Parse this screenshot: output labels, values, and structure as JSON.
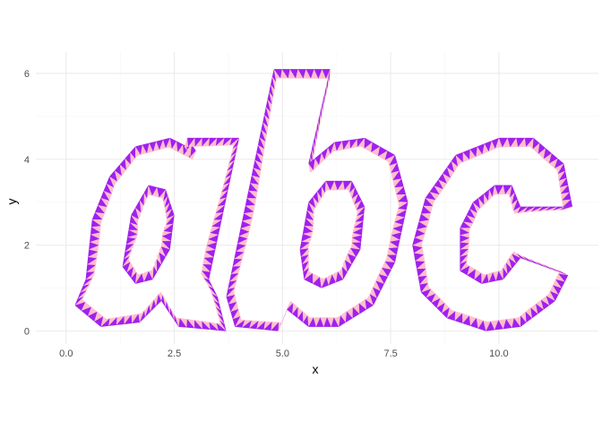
{
  "chart_data": {
    "type": "polygon-outline",
    "title": "",
    "xlabel": "x",
    "ylabel": "y",
    "xlim": [
      -0.7,
      12.3
    ],
    "ylim": [
      -0.3,
      6.5
    ],
    "x_ticks": [
      0,
      2.5,
      5,
      7.5,
      10
    ],
    "x_tick_labels": [
      "0.0",
      "2.5",
      "5.0",
      "7.5",
      "10.0"
    ],
    "y_ticks": [
      0,
      2,
      4,
      6
    ],
    "y_tick_labels": [
      "0",
      "2",
      "4",
      "6"
    ],
    "grid": true,
    "legend": "none",
    "colors": {
      "triangle_a": "#a020f0",
      "triangle_b": "#ffc0cb",
      "grid_major": "#ebebeb",
      "grid_minor": "#f5f5f5"
    },
    "glyphs": [
      {
        "name": "a-outer",
        "points": [
          [
            0.45,
            1.2
          ],
          [
            0.6,
            2.6
          ],
          [
            1.0,
            3.6
          ],
          [
            1.6,
            4.3
          ],
          [
            2.4,
            4.5
          ],
          [
            3.0,
            4.2
          ],
          [
            2.8,
            4.5
          ],
          [
            4.0,
            4.5
          ],
          [
            3.3,
            1.2
          ],
          [
            3.5,
            0.8
          ],
          [
            3.7,
            0
          ],
          [
            2.6,
            0.1
          ],
          [
            2.2,
            0.7
          ],
          [
            1.7,
            0.2
          ],
          [
            0.8,
            0.1
          ],
          [
            0.2,
            0.6
          ]
        ]
      },
      {
        "name": "a-inner",
        "points": [
          [
            1.3,
            1.5
          ],
          [
            1.5,
            2.7
          ],
          [
            1.9,
            3.4
          ],
          [
            2.3,
            3.3
          ],
          [
            2.5,
            2.7
          ],
          [
            2.4,
            1.9
          ],
          [
            2.0,
            1.2
          ],
          [
            1.6,
            1.1
          ]
        ]
      },
      {
        "name": "b-outer",
        "points": [
          [
            4.8,
            6.1
          ],
          [
            6.1,
            6.1
          ],
          [
            5.6,
            3.9
          ],
          [
            6.2,
            4.4
          ],
          [
            6.9,
            4.5
          ],
          [
            7.6,
            4.1
          ],
          [
            7.9,
            3.0
          ],
          [
            7.6,
            1.6
          ],
          [
            7.1,
            0.6
          ],
          [
            6.3,
            0.1
          ],
          [
            5.6,
            0.1
          ],
          [
            5.1,
            0.5
          ],
          [
            4.9,
            0.0
          ],
          [
            3.9,
            0.1
          ],
          [
            3.7,
            0.8
          ]
        ]
      },
      {
        "name": "b-inner",
        "points": [
          [
            5.4,
            1.9
          ],
          [
            5.6,
            3.0
          ],
          [
            6.0,
            3.5
          ],
          [
            6.6,
            3.5
          ],
          [
            6.9,
            2.9
          ],
          [
            6.8,
            1.9
          ],
          [
            6.4,
            1.2
          ],
          [
            5.9,
            1.0
          ],
          [
            5.5,
            1.2
          ]
        ]
      },
      {
        "name": "c-outer",
        "points": [
          [
            11.7,
            2.9
          ],
          [
            11.5,
            3.9
          ],
          [
            10.8,
            4.5
          ],
          [
            10.0,
            4.5
          ],
          [
            9.0,
            4.1
          ],
          [
            8.3,
            3.1
          ],
          [
            8.0,
            2.0
          ],
          [
            8.2,
            0.9
          ],
          [
            8.8,
            0.3
          ],
          [
            9.7,
            0.0
          ],
          [
            10.5,
            0.1
          ],
          [
            11.3,
            0.7
          ],
          [
            11.6,
            1.3
          ],
          [
            10.5,
            1.7
          ],
          [
            10.1,
            1.2
          ],
          [
            9.6,
            1.1
          ],
          [
            9.1,
            1.4
          ],
          [
            9.1,
            2.4
          ],
          [
            9.4,
            3.0
          ],
          [
            9.9,
            3.4
          ],
          [
            10.3,
            3.4
          ],
          [
            10.5,
            2.9
          ]
        ]
      }
    ]
  }
}
